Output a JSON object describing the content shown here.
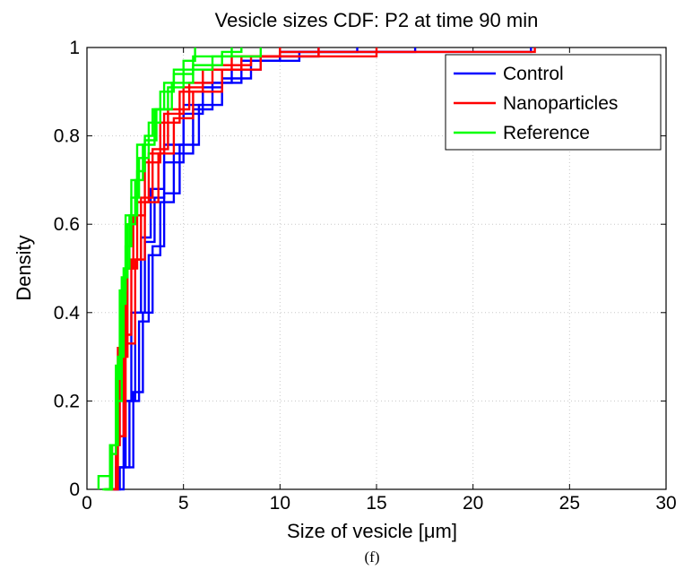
{
  "caption": "(f)",
  "chart_data": {
    "type": "line",
    "title": "Vesicle sizes CDF: P2 at time 90 min",
    "xlabel": "Size of vesicle [μm]",
    "ylabel": "Density",
    "xlim": [
      0,
      30
    ],
    "ylim": [
      0,
      1
    ],
    "xticks": [
      0,
      5,
      10,
      15,
      20,
      25,
      30
    ],
    "yticks": [
      0,
      0.2,
      0.4,
      0.6,
      0.8,
      1
    ],
    "xtick_labels": [
      "0",
      "5",
      "10",
      "15",
      "20",
      "25",
      "30"
    ],
    "ytick_labels": [
      "0",
      "0.2",
      "0.4",
      "0.6",
      "0.8",
      "1"
    ],
    "grid": true,
    "legend_position": "top-right",
    "series": [
      {
        "name": "Control",
        "color": "#0000ff",
        "curves": [
          [
            [
              1.3,
              0
            ],
            [
              1.6,
              0.05
            ],
            [
              2.0,
              0.2
            ],
            [
              2.5,
              0.4
            ],
            [
              3.0,
              0.56
            ],
            [
              3.5,
              0.66
            ],
            [
              4.0,
              0.74
            ],
            [
              5.0,
              0.85
            ],
            [
              6.0,
              0.91
            ],
            [
              7.0,
              0.95
            ],
            [
              8.0,
              0.97
            ],
            [
              10.0,
              0.99
            ],
            [
              14.0,
              1.0
            ]
          ],
          [
            [
              1.4,
              0
            ],
            [
              1.7,
              0.05
            ],
            [
              2.2,
              0.2
            ],
            [
              2.7,
              0.38
            ],
            [
              3.2,
              0.53
            ],
            [
              3.8,
              0.65
            ],
            [
              4.5,
              0.76
            ],
            [
              5.5,
              0.86
            ],
            [
              6.5,
              0.92
            ],
            [
              7.5,
              0.95
            ],
            [
              9.0,
              0.98
            ],
            [
              12.0,
              1.0
            ]
          ],
          [
            [
              1.5,
              0
            ],
            [
              1.9,
              0.05
            ],
            [
              2.4,
              0.22
            ],
            [
              2.9,
              0.4
            ],
            [
              3.4,
              0.55
            ],
            [
              4.0,
              0.67
            ],
            [
              4.8,
              0.78
            ],
            [
              5.8,
              0.87
            ],
            [
              7.0,
              0.93
            ],
            [
              8.5,
              0.97
            ],
            [
              10.0,
              0.99
            ],
            [
              17.0,
              1.0
            ]
          ],
          [
            [
              1.2,
              0
            ],
            [
              1.5,
              0.05
            ],
            [
              1.9,
              0.2
            ],
            [
              2.3,
              0.4
            ],
            [
              2.8,
              0.57
            ],
            [
              3.3,
              0.68
            ],
            [
              4.0,
              0.78
            ],
            [
              5.0,
              0.87
            ],
            [
              6.0,
              0.92
            ],
            [
              8.0,
              0.97
            ],
            [
              11.0,
              0.99
            ],
            [
              23.0,
              1.0
            ]
          ]
        ]
      },
      {
        "name": "Nanoparticles",
        "color": "#ff0000",
        "curves": [
          [
            [
              1.0,
              0
            ],
            [
              1.3,
              0.1
            ],
            [
              1.7,
              0.3
            ],
            [
              2.1,
              0.5
            ],
            [
              2.6,
              0.65
            ],
            [
              3.2,
              0.76
            ],
            [
              4.0,
              0.85
            ],
            [
              5.0,
              0.91
            ],
            [
              6.0,
              0.95
            ],
            [
              8.0,
              0.98
            ],
            [
              10.0,
              0.99
            ],
            [
              23.2,
              1.0
            ]
          ],
          [
            [
              1.1,
              0
            ],
            [
              1.5,
              0.12
            ],
            [
              1.9,
              0.35
            ],
            [
              2.3,
              0.52
            ],
            [
              2.8,
              0.66
            ],
            [
              3.4,
              0.77
            ],
            [
              4.2,
              0.86
            ],
            [
              5.3,
              0.92
            ],
            [
              6.5,
              0.96
            ],
            [
              8.5,
              0.98
            ],
            [
              12.0,
              1.0
            ]
          ],
          [
            [
              0.9,
              0
            ],
            [
              1.2,
              0.1
            ],
            [
              1.6,
              0.32
            ],
            [
              2.0,
              0.5
            ],
            [
              2.4,
              0.62
            ],
            [
              3.0,
              0.74
            ],
            [
              3.8,
              0.83
            ],
            [
              4.8,
              0.9
            ],
            [
              6.0,
              0.95
            ],
            [
              7.5,
              0.98
            ],
            [
              10.0,
              1.0
            ]
          ],
          [
            [
              1.2,
              0
            ],
            [
              1.6,
              0.12
            ],
            [
              2.0,
              0.33
            ],
            [
              2.5,
              0.52
            ],
            [
              3.0,
              0.65
            ],
            [
              3.7,
              0.76
            ],
            [
              4.5,
              0.84
            ],
            [
              5.5,
              0.9
            ],
            [
              7.0,
              0.95
            ],
            [
              9.0,
              0.98
            ],
            [
              15.0,
              1.0
            ]
          ]
        ]
      },
      {
        "name": "Reference",
        "color": "#00ff00",
        "curves": [
          [
            [
              0.6,
              0
            ],
            [
              0.6,
              0.03
            ],
            [
              1.1,
              0.03
            ],
            [
              1.2,
              0.1
            ],
            [
              1.5,
              0.25
            ],
            [
              1.7,
              0.45
            ],
            [
              2.0,
              0.62
            ],
            [
              2.3,
              0.7
            ],
            [
              2.6,
              0.78
            ],
            [
              3.0,
              0.8
            ],
            [
              3.4,
              0.86
            ],
            [
              4.0,
              0.92
            ],
            [
              4.5,
              0.95
            ],
            [
              5.0,
              0.97
            ],
            [
              5.5,
              0.97
            ],
            [
              5.6,
              1.0
            ]
          ],
          [
            [
              0.8,
              0
            ],
            [
              1.2,
              0.08
            ],
            [
              1.5,
              0.2
            ],
            [
              1.8,
              0.42
            ],
            [
              2.0,
              0.55
            ],
            [
              2.3,
              0.66
            ],
            [
              2.7,
              0.75
            ],
            [
              3.2,
              0.83
            ],
            [
              3.8,
              0.9
            ],
            [
              4.5,
              0.94
            ],
            [
              5.5,
              0.98
            ],
            [
              7.5,
              1.0
            ]
          ],
          [
            [
              1.0,
              0
            ],
            [
              1.3,
              0.1
            ],
            [
              1.6,
              0.3
            ],
            [
              1.9,
              0.5
            ],
            [
              2.2,
              0.62
            ],
            [
              2.6,
              0.72
            ],
            [
              3.0,
              0.79
            ],
            [
              3.6,
              0.86
            ],
            [
              4.4,
              0.92
            ],
            [
              5.5,
              0.96
            ],
            [
              7.0,
              0.99
            ],
            [
              8.0,
              1.0
            ]
          ],
          [
            [
              0.9,
              0
            ],
            [
              1.2,
              0.1
            ],
            [
              1.5,
              0.28
            ],
            [
              1.8,
              0.48
            ],
            [
              2.1,
              0.6
            ],
            [
              2.5,
              0.7
            ],
            [
              2.9,
              0.78
            ],
            [
              3.5,
              0.86
            ],
            [
              4.2,
              0.91
            ],
            [
              5.0,
              0.95
            ],
            [
              6.5,
              0.98
            ],
            [
              9.0,
              1.0
            ]
          ]
        ]
      }
    ]
  }
}
